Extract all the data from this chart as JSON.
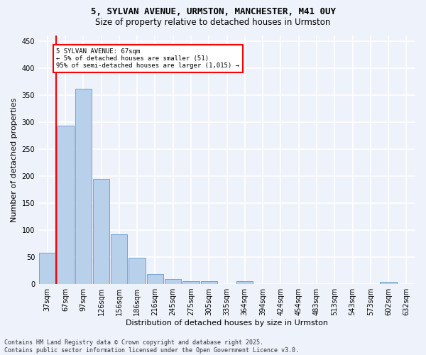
{
  "title1": "5, SYLVAN AVENUE, URMSTON, MANCHESTER, M41 0UY",
  "title2": "Size of property relative to detached houses in Urmston",
  "xlabel": "Distribution of detached houses by size in Urmston",
  "ylabel": "Number of detached properties",
  "bar_values": [
    58,
    293,
    361,
    194,
    92,
    49,
    19,
    9,
    5,
    5,
    0,
    5,
    0,
    0,
    0,
    0,
    0,
    0,
    0,
    4,
    0
  ],
  "bar_labels": [
    "37sqm",
    "67sqm",
    "97sqm",
    "126sqm",
    "156sqm",
    "186sqm",
    "216sqm",
    "245sqm",
    "275sqm",
    "305sqm",
    "335sqm",
    "364sqm",
    "394sqm",
    "424sqm",
    "454sqm",
    "483sqm",
    "513sqm",
    "543sqm",
    "573sqm",
    "602sqm",
    "632sqm"
  ],
  "bar_color": "#b8d0ea",
  "bar_edge_color": "#6699cc",
  "vline_color": "red",
  "annotation_text": "5 SYLVAN AVENUE: 67sqm\n← 5% of detached houses are smaller (51)\n95% of semi-detached houses are larger (1,015) →",
  "annotation_box_color": "white",
  "annotation_box_edge_color": "red",
  "ylim": [
    0,
    460
  ],
  "yticks": [
    0,
    50,
    100,
    150,
    200,
    250,
    300,
    350,
    400,
    450
  ],
  "footer": "Contains HM Land Registry data © Crown copyright and database right 2025.\nContains public sector information licensed under the Open Government Licence v3.0.",
  "background_color": "#eef2fa",
  "grid_color": "#ffffff",
  "title_fontsize": 9,
  "subtitle_fontsize": 8.5,
  "axis_label_fontsize": 8,
  "tick_fontsize": 7,
  "footer_fontsize": 6
}
